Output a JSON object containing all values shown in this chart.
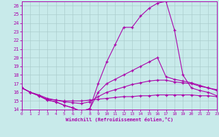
{
  "xlabel": "Windchill (Refroidissement éolien,°C)",
  "background_color": "#c8eaea",
  "line_color": "#aa00aa",
  "grid_color": "#aacccc",
  "x": [
    0,
    1,
    2,
    3,
    4,
    5,
    6,
    7,
    8,
    9,
    10,
    11,
    12,
    13,
    14,
    15,
    16,
    17,
    18,
    19,
    20,
    21,
    22,
    23
  ],
  "line_top": [
    16.5,
    16.0,
    15.6,
    15.1,
    14.9,
    14.5,
    14.2,
    13.8,
    14.1,
    17.0,
    19.5,
    21.5,
    23.5,
    23.5,
    24.8,
    25.7,
    26.3,
    26.5,
    23.2,
    18.0,
    16.5,
    16.2,
    16.0,
    15.6
  ],
  "line_mid_high": [
    16.5,
    16.0,
    15.6,
    15.1,
    14.9,
    14.5,
    14.2,
    13.8,
    14.1,
    16.0,
    17.0,
    17.5,
    18.0,
    18.5,
    19.0,
    19.5,
    20.0,
    17.8,
    17.5,
    17.3,
    17.1,
    16.8,
    16.5,
    16.3
  ],
  "line_mid_low": [
    16.5,
    16.0,
    15.7,
    15.3,
    15.1,
    14.9,
    14.8,
    14.7,
    14.9,
    15.5,
    16.0,
    16.3,
    16.6,
    16.9,
    17.1,
    17.3,
    17.4,
    17.4,
    17.2,
    17.1,
    17.0,
    16.7,
    16.5,
    16.2
  ],
  "line_bot": [
    16.5,
    16.0,
    15.6,
    15.2,
    15.1,
    15.0,
    15.0,
    15.0,
    15.1,
    15.2,
    15.3,
    15.4,
    15.5,
    15.5,
    15.6,
    15.6,
    15.7,
    15.7,
    15.7,
    15.7,
    15.7,
    15.6,
    15.6,
    15.5
  ],
  "xlim": [
    0,
    23
  ],
  "ylim": [
    14,
    26.5
  ],
  "yticks": [
    14,
    15,
    16,
    17,
    18,
    19,
    20,
    21,
    22,
    23,
    24,
    25,
    26
  ],
  "xticks": [
    0,
    1,
    2,
    3,
    4,
    5,
    6,
    7,
    8,
    9,
    10,
    11,
    12,
    13,
    14,
    15,
    16,
    17,
    18,
    19,
    20,
    21,
    22,
    23
  ]
}
